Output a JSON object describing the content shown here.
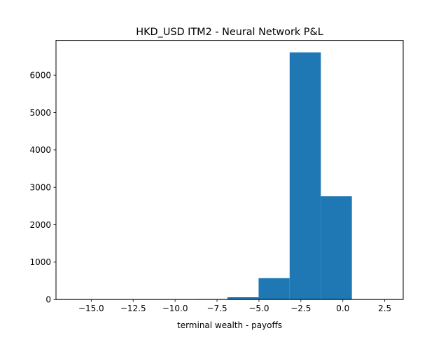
{
  "chart_data": {
    "type": "bar",
    "subtype": "histogram",
    "title": "HKD_USD ITM2 - Neural Network P&L",
    "xlabel": "terminal wealth - payoffs",
    "ylabel": "",
    "xlim": [
      -17.1,
      3.6
    ],
    "ylim": [
      0,
      6930
    ],
    "bar_color": "#1f77b4",
    "grid": false,
    "legend": "none",
    "xticks": [
      {
        "value": -15.0,
        "label": "−15.0"
      },
      {
        "value": -12.5,
        "label": "−12.5"
      },
      {
        "value": -10.0,
        "label": "−10.0"
      },
      {
        "value": -7.5,
        "label": "−7.5"
      },
      {
        "value": -5.0,
        "label": "−5.0"
      },
      {
        "value": -2.5,
        "label": "−2.5"
      },
      {
        "value": 0.0,
        "label": "0.0"
      },
      {
        "value": 2.5,
        "label": "2.5"
      }
    ],
    "yticks": [
      {
        "value": 0,
        "label": "0"
      },
      {
        "value": 1000,
        "label": "1000"
      },
      {
        "value": 2000,
        "label": "2000"
      },
      {
        "value": 3000,
        "label": "3000"
      },
      {
        "value": 4000,
        "label": "4000"
      },
      {
        "value": 5000,
        "label": "5000"
      },
      {
        "value": 6000,
        "label": "6000"
      }
    ],
    "bins": [
      {
        "x0": -16.15,
        "x1": -14.3,
        "count": 1
      },
      {
        "x0": -14.3,
        "x1": -12.44,
        "count": 0
      },
      {
        "x0": -12.44,
        "x1": -10.59,
        "count": 0
      },
      {
        "x0": -10.59,
        "x1": -8.73,
        "count": 2
      },
      {
        "x0": -8.73,
        "x1": -6.88,
        "count": 8
      },
      {
        "x0": -6.88,
        "x1": -5.02,
        "count": 60
      },
      {
        "x0": -5.02,
        "x1": -3.17,
        "count": 570
      },
      {
        "x0": -3.17,
        "x1": -1.31,
        "count": 6610
      },
      {
        "x0": -1.31,
        "x1": 0.54,
        "count": 2760
      },
      {
        "x0": 0.54,
        "x1": 2.4,
        "count": 0
      }
    ]
  }
}
